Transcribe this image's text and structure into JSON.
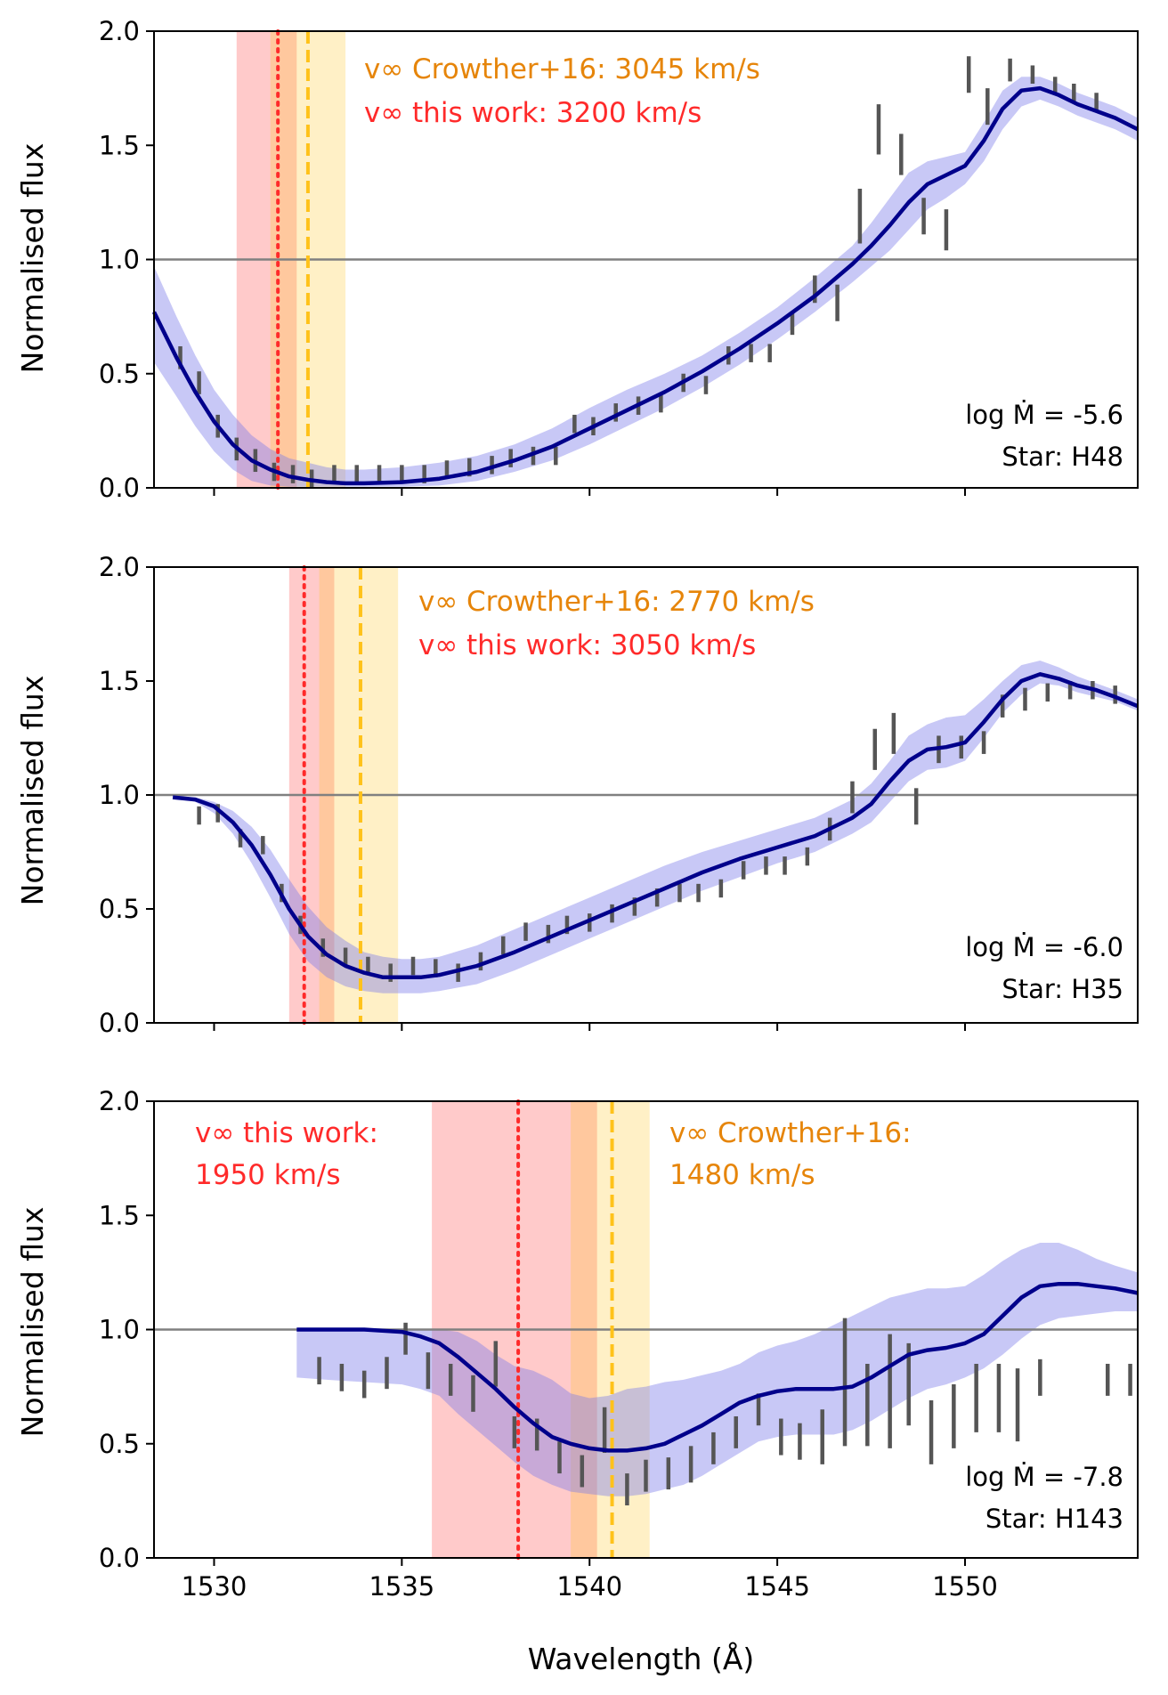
{
  "figure": {
    "xlabel": "Wavelength (Å)",
    "x_ticks": [
      "1530",
      "1535",
      "1540",
      "1545",
      "1550"
    ],
    "y_ticks": [
      "0.0",
      "0.5",
      "1.0",
      "1.5",
      "2.0"
    ],
    "ylabel": "Normalised flux"
  },
  "colors": {
    "model_line": "#00008b",
    "model_band": "#7b7bea",
    "observed": "#555555",
    "this_work": "#ff2a2a",
    "crowther": "#ffc21a",
    "crowther_text": "#e6850a",
    "continuum": "#808080"
  },
  "chart_data": [
    {
      "type": "line",
      "title": "",
      "star_label": "Star: H48",
      "mdot_label": "log Ṁ = -5.6",
      "annotations": {
        "crowther": "v∞ Crowther+16: 3045 km/s",
        "this_work": "v∞ this work: 3200 km/s"
      },
      "xlim": [
        1528.4,
        1554.6
      ],
      "ylim": [
        0,
        2
      ],
      "continuum": 1.0,
      "this_work_vinf": {
        "center": 1531.7,
        "band": [
          1530.6,
          1532.2
        ]
      },
      "crowther_vinf": {
        "center": 1532.5,
        "band": [
          1531.5,
          1533.5
        ]
      },
      "model": {
        "x": [
          1528.4,
          1529,
          1529.5,
          1530,
          1530.5,
          1531,
          1531.5,
          1532,
          1532.5,
          1533,
          1533.5,
          1534,
          1535,
          1536,
          1537,
          1538,
          1539,
          1540,
          1541,
          1542,
          1543,
          1544,
          1545,
          1546,
          1547,
          1547.5,
          1548,
          1548.5,
          1549,
          1549.5,
          1550,
          1550.5,
          1551,
          1551.5,
          1552,
          1552.5,
          1553,
          1553.5,
          1554,
          1554.6
        ],
        "y": [
          0.77,
          0.57,
          0.42,
          0.29,
          0.19,
          0.12,
          0.08,
          0.05,
          0.035,
          0.025,
          0.02,
          0.02,
          0.025,
          0.04,
          0.07,
          0.12,
          0.18,
          0.26,
          0.34,
          0.42,
          0.51,
          0.61,
          0.72,
          0.84,
          0.98,
          1.06,
          1.15,
          1.25,
          1.33,
          1.37,
          1.41,
          1.52,
          1.66,
          1.74,
          1.75,
          1.72,
          1.68,
          1.65,
          1.62,
          1.57
        ],
        "upper": [
          0.97,
          0.75,
          0.58,
          0.43,
          0.32,
          0.23,
          0.17,
          0.13,
          0.11,
          0.09,
          0.08,
          0.08,
          0.09,
          0.11,
          0.14,
          0.19,
          0.26,
          0.35,
          0.43,
          0.5,
          0.58,
          0.68,
          0.79,
          0.92,
          1.06,
          1.16,
          1.27,
          1.38,
          1.43,
          1.45,
          1.47,
          1.6,
          1.74,
          1.8,
          1.8,
          1.77,
          1.73,
          1.7,
          1.67,
          1.62
        ],
        "lower": [
          0.55,
          0.4,
          0.27,
          0.16,
          0.08,
          0.03,
          0.01,
          0.005,
          0.005,
          0.005,
          0.005,
          0.005,
          0.005,
          0.01,
          0.03,
          0.07,
          0.12,
          0.19,
          0.27,
          0.35,
          0.44,
          0.54,
          0.65,
          0.77,
          0.9,
          0.97,
          1.04,
          1.13,
          1.22,
          1.27,
          1.33,
          1.43,
          1.57,
          1.67,
          1.7,
          1.67,
          1.63,
          1.6,
          1.57,
          1.52
        ]
      },
      "observed": {
        "x": [
          1529.1,
          1529.6,
          1530.1,
          1530.6,
          1531.1,
          1531.6,
          1532.1,
          1532.6,
          1533.2,
          1533.8,
          1534.4,
          1535.0,
          1535.6,
          1536.2,
          1536.8,
          1537.4,
          1537.9,
          1538.5,
          1539.1,
          1539.6,
          1540.1,
          1540.7,
          1541.3,
          1541.9,
          1542.5,
          1543.1,
          1543.7,
          1544.3,
          1544.8,
          1545.4,
          1546.0,
          1546.6,
          1547.2,
          1547.7,
          1548.3,
          1548.9,
          1549.5,
          1550.1,
          1550.6,
          1551.2,
          1551.8,
          1552.4,
          1552.9,
          1553.5
        ],
        "y": [
          0.57,
          0.46,
          0.27,
          0.17,
          0.12,
          0.07,
          0.06,
          0.04,
          0.06,
          0.06,
          0.06,
          0.06,
          0.06,
          0.08,
          0.09,
          0.1,
          0.13,
          0.14,
          0.14,
          0.28,
          0.27,
          0.33,
          0.36,
          0.37,
          0.46,
          0.45,
          0.58,
          0.59,
          0.59,
          0.72,
          0.87,
          0.81,
          1.19,
          1.57,
          1.46,
          1.19,
          1.13,
          1.81,
          1.67,
          1.83,
          1.81,
          1.76,
          1.73,
          1.69
        ],
        "err": [
          0.05,
          0.05,
          0.05,
          0.05,
          0.05,
          0.04,
          0.04,
          0.04,
          0.04,
          0.04,
          0.04,
          0.04,
          0.04,
          0.04,
          0.04,
          0.04,
          0.04,
          0.04,
          0.04,
          0.04,
          0.04,
          0.04,
          0.04,
          0.04,
          0.04,
          0.04,
          0.04,
          0.04,
          0.04,
          0.05,
          0.06,
          0.08,
          0.12,
          0.11,
          0.09,
          0.08,
          0.09,
          0.08,
          0.08,
          0.05,
          0.04,
          0.04,
          0.04,
          0.04
        ]
      }
    },
    {
      "type": "line",
      "title": "",
      "star_label": "Star: H35",
      "mdot_label": "log Ṁ = -6.0",
      "annotations": {
        "crowther": "v∞ Crowther+16: 2770 km/s",
        "this_work": "v∞ this work: 3050 km/s"
      },
      "xlim": [
        1528.4,
        1554.6
      ],
      "ylim": [
        0,
        2
      ],
      "continuum": 1.0,
      "this_work_vinf": {
        "center": 1532.4,
        "band": [
          1532.0,
          1533.2
        ]
      },
      "crowther_vinf": {
        "center": 1533.9,
        "band": [
          1532.8,
          1534.9
        ]
      },
      "model": {
        "x": [
          1528.9,
          1529.5,
          1530,
          1530.5,
          1531,
          1531.5,
          1532,
          1532.5,
          1533,
          1533.5,
          1534,
          1534.5,
          1535,
          1535.5,
          1536,
          1537,
          1538,
          1539,
          1540,
          1541,
          1542,
          1543,
          1544,
          1545,
          1546,
          1547,
          1547.5,
          1548,
          1548.5,
          1549,
          1549.5,
          1550,
          1550.5,
          1551,
          1551.5,
          1552,
          1552.5,
          1553,
          1553.5,
          1554,
          1554.6
        ],
        "y": [
          0.99,
          0.98,
          0.95,
          0.88,
          0.78,
          0.65,
          0.5,
          0.38,
          0.3,
          0.25,
          0.22,
          0.2,
          0.2,
          0.2,
          0.21,
          0.25,
          0.31,
          0.38,
          0.45,
          0.52,
          0.59,
          0.66,
          0.72,
          0.77,
          0.82,
          0.9,
          0.96,
          1.06,
          1.15,
          1.2,
          1.21,
          1.23,
          1.32,
          1.42,
          1.5,
          1.53,
          1.51,
          1.48,
          1.46,
          1.43,
          1.39
        ],
        "upper": [
          0.99,
          0.99,
          0.97,
          0.93,
          0.86,
          0.76,
          0.63,
          0.51,
          0.42,
          0.36,
          0.31,
          0.29,
          0.28,
          0.28,
          0.29,
          0.34,
          0.41,
          0.48,
          0.55,
          0.62,
          0.69,
          0.75,
          0.8,
          0.85,
          0.9,
          0.98,
          1.05,
          1.15,
          1.26,
          1.31,
          1.34,
          1.35,
          1.42,
          1.5,
          1.57,
          1.59,
          1.56,
          1.52,
          1.49,
          1.46,
          1.42
        ],
        "lower": [
          0.99,
          0.97,
          0.92,
          0.83,
          0.7,
          0.55,
          0.39,
          0.27,
          0.2,
          0.16,
          0.14,
          0.13,
          0.13,
          0.13,
          0.14,
          0.17,
          0.23,
          0.3,
          0.37,
          0.44,
          0.51,
          0.58,
          0.64,
          0.7,
          0.75,
          0.83,
          0.88,
          0.97,
          1.06,
          1.11,
          1.12,
          1.15,
          1.25,
          1.36,
          1.44,
          1.49,
          1.48,
          1.45,
          1.43,
          1.41,
          1.37
        ]
      },
      "observed": {
        "x": [
          1529.6,
          1530.1,
          1530.7,
          1531.3,
          1531.8,
          1532.3,
          1532.9,
          1533.5,
          1534.1,
          1534.7,
          1535.3,
          1535.9,
          1536.5,
          1537.1,
          1537.7,
          1538.3,
          1538.9,
          1539.4,
          1540.0,
          1540.6,
          1541.2,
          1541.8,
          1542.4,
          1542.9,
          1543.5,
          1544.1,
          1544.7,
          1545.2,
          1545.8,
          1546.4,
          1547.0,
          1547.6,
          1548.1,
          1548.7,
          1549.3,
          1549.9,
          1550.5,
          1551.0,
          1551.6,
          1552.2,
          1552.8,
          1553.4,
          1554.0
        ],
        "y": [
          0.91,
          0.92,
          0.81,
          0.78,
          0.57,
          0.43,
          0.33,
          0.29,
          0.25,
          0.22,
          0.25,
          0.24,
          0.22,
          0.27,
          0.34,
          0.4,
          0.39,
          0.43,
          0.44,
          0.48,
          0.51,
          0.55,
          0.57,
          0.57,
          0.59,
          0.67,
          0.69,
          0.69,
          0.73,
          0.85,
          0.99,
          1.2,
          1.27,
          0.95,
          1.2,
          1.21,
          1.23,
          1.39,
          1.42,
          1.45,
          1.46,
          1.46,
          1.44
        ],
        "err": [
          0.04,
          0.04,
          0.04,
          0.04,
          0.04,
          0.04,
          0.04,
          0.04,
          0.04,
          0.04,
          0.04,
          0.04,
          0.04,
          0.04,
          0.04,
          0.04,
          0.04,
          0.04,
          0.04,
          0.04,
          0.04,
          0.04,
          0.04,
          0.04,
          0.04,
          0.04,
          0.04,
          0.04,
          0.04,
          0.05,
          0.07,
          0.09,
          0.09,
          0.08,
          0.06,
          0.05,
          0.05,
          0.05,
          0.05,
          0.04,
          0.04,
          0.04,
          0.04
        ]
      }
    },
    {
      "type": "line",
      "title": "",
      "star_label": "Star: H143",
      "mdot_label": "log Ṁ = -7.8",
      "annotations": {
        "crowther_line1": "v∞ Crowther+16:",
        "crowther_line2": "1480 km/s",
        "this_work_line1": "v∞ this work:",
        "this_work_line2": "1950 km/s"
      },
      "xlim": [
        1528.4,
        1554.6
      ],
      "ylim": [
        0,
        2
      ],
      "continuum": 1.0,
      "this_work_vinf": {
        "center": 1538.1,
        "band": [
          1535.8,
          1540.2
        ]
      },
      "crowther_vinf": {
        "center": 1540.6,
        "band": [
          1539.5,
          1541.6
        ]
      },
      "model": {
        "x": [
          1532.2,
          1533,
          1534,
          1535,
          1535.5,
          1536,
          1536.5,
          1537,
          1537.5,
          1538,
          1538.5,
          1539,
          1539.5,
          1540,
          1540.5,
          1541,
          1541.5,
          1542,
          1542.5,
          1543,
          1543.5,
          1544,
          1544.5,
          1545,
          1545.5,
          1546,
          1546.5,
          1547,
          1547.5,
          1548,
          1548.5,
          1549,
          1549.5,
          1550,
          1550.5,
          1551,
          1551.5,
          1552,
          1552.5,
          1553,
          1553.5,
          1554,
          1554.6
        ],
        "y": [
          1.0,
          1.0,
          1.0,
          0.99,
          0.97,
          0.94,
          0.88,
          0.81,
          0.74,
          0.66,
          0.59,
          0.53,
          0.5,
          0.48,
          0.47,
          0.47,
          0.48,
          0.5,
          0.54,
          0.58,
          0.63,
          0.68,
          0.71,
          0.73,
          0.74,
          0.74,
          0.74,
          0.75,
          0.79,
          0.84,
          0.89,
          0.91,
          0.92,
          0.94,
          0.98,
          1.06,
          1.14,
          1.19,
          1.2,
          1.2,
          1.19,
          1.18,
          1.16
        ],
        "upper": [
          1.0,
          1.0,
          1.0,
          1.0,
          1.0,
          1.0,
          0.99,
          0.95,
          0.89,
          0.84,
          0.82,
          0.78,
          0.72,
          0.7,
          0.71,
          0.74,
          0.75,
          0.77,
          0.78,
          0.8,
          0.82,
          0.85,
          0.9,
          0.93,
          0.95,
          0.98,
          1.02,
          1.06,
          1.1,
          1.14,
          1.16,
          1.18,
          1.18,
          1.19,
          1.24,
          1.3,
          1.35,
          1.38,
          1.38,
          1.35,
          1.31,
          1.28,
          1.25
        ],
        "lower": [
          0.79,
          0.78,
          0.77,
          0.76,
          0.74,
          0.71,
          0.63,
          0.56,
          0.49,
          0.42,
          0.36,
          0.32,
          0.29,
          0.28,
          0.27,
          0.27,
          0.28,
          0.3,
          0.32,
          0.36,
          0.41,
          0.46,
          0.51,
          0.53,
          0.54,
          0.54,
          0.54,
          0.56,
          0.6,
          0.65,
          0.7,
          0.74,
          0.76,
          0.79,
          0.83,
          0.89,
          0.96,
          1.02,
          1.05,
          1.06,
          1.07,
          1.08,
          1.08
        ]
      },
      "observed": {
        "x": [
          1532.8,
          1533.4,
          1534.0,
          1534.6,
          1535.1,
          1535.7,
          1536.3,
          1536.9,
          1537.5,
          1538.0,
          1538.6,
          1539.2,
          1539.8,
          1540.4,
          1541.0,
          1541.5,
          1542.1,
          1542.7,
          1543.3,
          1543.9,
          1544.5,
          1545.1,
          1545.6,
          1546.2,
          1546.8,
          1547.4,
          1548.0,
          1548.5,
          1549.1,
          1549.7,
          1550.3,
          1550.9,
          1551.4,
          1552.0,
          1553.8,
          1554.4
        ],
        "y": [
          0.82,
          0.79,
          0.76,
          0.81,
          0.96,
          0.82,
          0.78,
          0.72,
          0.85,
          0.55,
          0.54,
          0.44,
          0.38,
          0.56,
          0.3,
          0.36,
          0.37,
          0.41,
          0.48,
          0.55,
          0.65,
          0.53,
          0.51,
          0.53,
          0.77,
          0.67,
          0.73,
          0.76,
          0.55,
          0.62,
          0.7,
          0.7,
          0.67,
          0.79,
          0.78,
          0.78
        ],
        "err": [
          0.06,
          0.06,
          0.06,
          0.07,
          0.07,
          0.08,
          0.07,
          0.08,
          0.1,
          0.07,
          0.07,
          0.07,
          0.07,
          0.1,
          0.07,
          0.07,
          0.07,
          0.08,
          0.07,
          0.07,
          0.07,
          0.08,
          0.08,
          0.12,
          0.28,
          0.18,
          0.25,
          0.18,
          0.14,
          0.14,
          0.15,
          0.15,
          0.16,
          0.08,
          0.07,
          0.07
        ]
      }
    }
  ]
}
